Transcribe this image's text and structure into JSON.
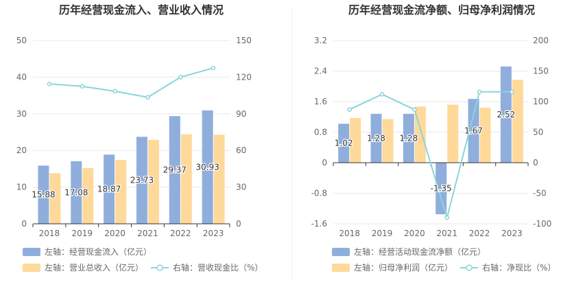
{
  "colors": {
    "bar_blue": "#8FAEDC",
    "bar_orange": "#FFD99A",
    "line_teal": "#88D5DA",
    "grid": "#E8E8E8",
    "axis": "#333333"
  },
  "chart_data": [
    {
      "type": "bar",
      "title": "历年经营现金流入、营业收入情况",
      "categories": [
        "2018",
        "2019",
        "2020",
        "2021",
        "2022",
        "2023"
      ],
      "left_axis": {
        "ticks": [
          0,
          10,
          20,
          30,
          40,
          50
        ],
        "ylim": [
          0,
          50
        ]
      },
      "right_axis": {
        "ticks": [
          0,
          30,
          60,
          90,
          120,
          150
        ],
        "ylim": [
          0,
          150
        ]
      },
      "series": [
        {
          "name": "左轴：经营现金流入（亿元）",
          "type": "bar",
          "axis": "left",
          "color": "#8FAEDC",
          "values": [
            15.88,
            17.08,
            18.87,
            23.73,
            29.37,
            30.93
          ],
          "show_labels": true
        },
        {
          "name": "左轴：营业总收入（亿元）",
          "type": "bar",
          "axis": "left",
          "color": "#FFD99A",
          "values": [
            13.8,
            15.2,
            17.4,
            22.9,
            24.4,
            24.3
          ],
          "show_labels": false
        },
        {
          "name": "右轴：营收现金比（%）",
          "type": "line",
          "axis": "right",
          "color": "#88D5DA",
          "values": [
            114.5,
            112.5,
            108.5,
            103.5,
            120.0,
            127.5
          ]
        }
      ],
      "legend": [
        "左轴：经营现金流入（亿元）",
        "左轴：营业总收入（亿元）",
        "右轴：营收现金比（%）"
      ]
    },
    {
      "type": "bar",
      "title": "历年经营现金流净额、归母净利润情况",
      "categories": [
        "2018",
        "2019",
        "2020",
        "2021",
        "2022",
        "2023"
      ],
      "left_axis": {
        "ticks": [
          -1.6,
          -0.8,
          0,
          0.8,
          1.6,
          2.4,
          3.2
        ],
        "ylim": [
          -1.6,
          3.2
        ]
      },
      "right_axis": {
        "ticks": [
          -100,
          -50,
          0,
          50,
          100,
          150,
          200
        ],
        "ylim": [
          -100,
          200
        ]
      },
      "series": [
        {
          "name": "左轴：经营活动现金流净额（亿元）",
          "type": "bar",
          "axis": "left",
          "color": "#8FAEDC",
          "values": [
            1.02,
            1.28,
            1.28,
            -1.35,
            1.67,
            2.52
          ],
          "show_labels": true
        },
        {
          "name": "左轴：归母净利润（亿元）",
          "type": "bar",
          "axis": "left",
          "color": "#FFD99A",
          "values": [
            1.17,
            1.14,
            1.47,
            1.52,
            1.44,
            2.17
          ],
          "show_labels": false
        },
        {
          "name": "右轴：净现比（%）",
          "type": "line",
          "axis": "right",
          "color": "#88D5DA",
          "values": [
            87,
            112,
            87,
            -90,
            116,
            116
          ]
        }
      ],
      "legend": [
        "左轴：经营活动现金流净额（亿元）",
        "左轴：归母净利润（亿元）",
        "右轴：净现比（%）"
      ]
    }
  ]
}
